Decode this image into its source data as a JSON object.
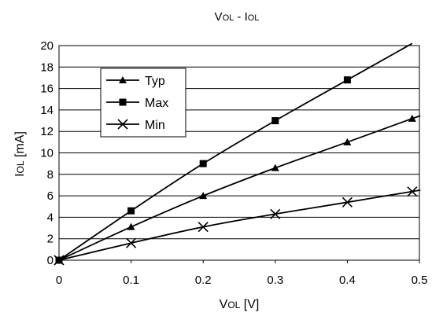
{
  "chart_data": {
    "type": "line",
    "title_main": "V",
    "title_sub1": "OL",
    "title_mid": " - I",
    "title_sub2": "OL",
    "xlabel_main": "V",
    "xlabel_sub": "OL",
    "xlabel_unit": " [V]",
    "ylabel_main": "I",
    "ylabel_sub": "OL",
    "ylabel_unit": " [mA]",
    "xlim": [
      0,
      0.5
    ],
    "ylim": [
      0,
      20
    ],
    "x_ticks": [
      "0",
      "0.1",
      "0.2",
      "0.3",
      "0.4",
      "0.5"
    ],
    "y_ticks": [
      "0",
      "2",
      "4",
      "6",
      "8",
      "10",
      "12",
      "14",
      "16",
      "18",
      "20"
    ],
    "grid": "horizontal",
    "legend_position": "top-left",
    "series": [
      {
        "name": "Typ",
        "marker": "triangle",
        "x": [
          0,
          0.1,
          0.2,
          0.3,
          0.4,
          0.49
        ],
        "y": [
          0,
          3.1,
          6.0,
          8.6,
          11.0,
          13.2
        ],
        "curve_end": [
          0.5,
          13.4
        ]
      },
      {
        "name": "Max",
        "marker": "square",
        "x": [
          0,
          0.1,
          0.2,
          0.3,
          0.4
        ],
        "y": [
          0,
          4.6,
          9.0,
          13.0,
          16.8
        ],
        "curve_end": [
          0.49,
          20.2
        ]
      },
      {
        "name": "Min",
        "marker": "x",
        "x": [
          0,
          0.1,
          0.2,
          0.3,
          0.4,
          0.49
        ],
        "y": [
          0,
          1.6,
          3.1,
          4.3,
          5.4,
          6.4
        ],
        "curve_end": [
          0.5,
          6.5
        ]
      }
    ]
  }
}
